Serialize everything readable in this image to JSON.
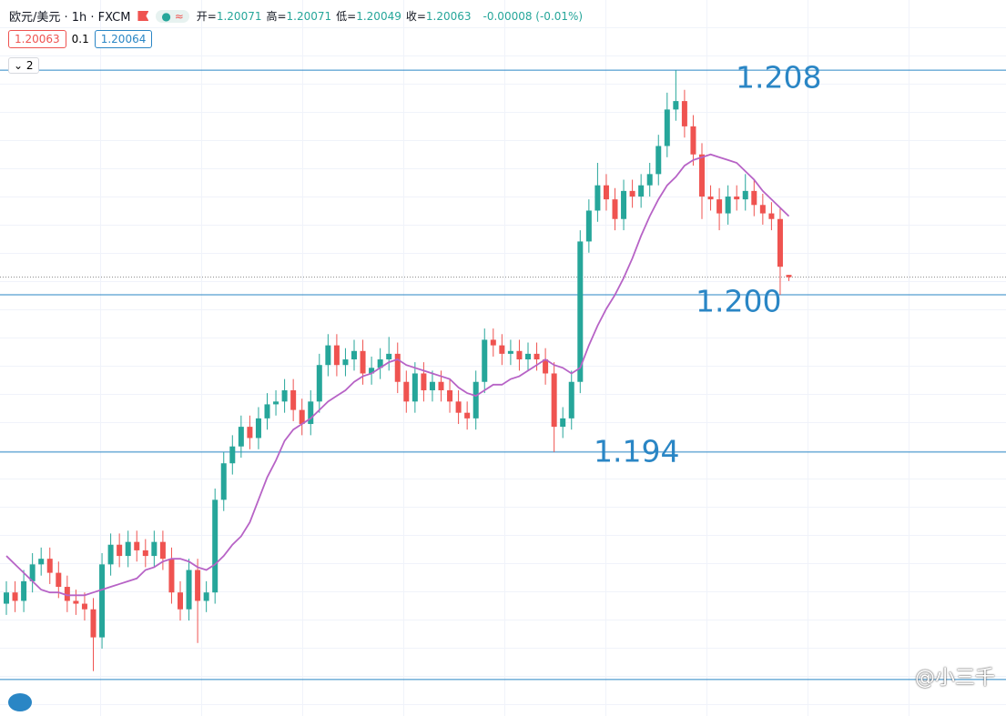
{
  "header": {
    "symbol": "欧元/美元 · 1h · FXCM",
    "ohlc": [
      {
        "label": "开=",
        "value": "1.20071"
      },
      {
        "label": "高=",
        "value": "1.20071"
      },
      {
        "label": "低=",
        "value": "1.20049"
      },
      {
        "label": "收=",
        "value": "1.20063"
      }
    ],
    "change": "-0.00008 (-0.01%)",
    "badges": [
      "1.20063",
      "0.1",
      "1.20064"
    ],
    "collapse": "2"
  },
  "watermark": "@小三千",
  "chart_data": {
    "type": "candlestick",
    "open": [
      1.189,
      1.1894,
      1.1891,
      1.1898,
      1.1904,
      1.1906,
      1.1901,
      1.1896,
      1.1891,
      1.189,
      1.1888,
      1.1878,
      1.1904,
      1.1911,
      1.1907,
      1.1912,
      1.1909,
      1.1907,
      1.1912,
      1.1906,
      1.1894,
      1.1888,
      1.1902,
      1.1891,
      1.1894,
      1.1927,
      1.194,
      1.1946,
      1.1953,
      1.1949,
      1.1956,
      1.1961,
      1.1962,
      1.1966,
      1.1959,
      1.1954,
      1.1962,
      1.1975,
      1.1982,
      1.1975,
      1.1977,
      1.198,
      1.1972,
      1.1974,
      1.1977,
      1.1979,
      1.1969,
      1.1962,
      1.1972,
      1.1966,
      1.1969,
      1.1966,
      1.1962,
      1.1958,
      1.1956,
      1.1969,
      1.1984,
      1.1982,
      1.1979,
      1.198,
      1.1977,
      1.1979,
      1.1977,
      1.1972,
      1.1953,
      1.1956,
      1.1969,
      1.2019,
      1.203,
      1.2039,
      1.2034,
      1.2027,
      1.2037,
      1.2035,
      1.2039,
      1.2043,
      1.2053,
      1.2066,
      1.2069,
      1.206,
      1.205,
      1.2035,
      1.2034,
      1.2029,
      1.2035,
      1.2034,
      1.2037,
      1.2032,
      1.2029,
      1.2027,
      1.20071
    ],
    "high": [
      1.1898,
      1.1898,
      1.1902,
      1.1908,
      1.191,
      1.191,
      1.1905,
      1.19,
      1.1895,
      1.1894,
      1.1892,
      1.1908,
      1.1915,
      1.1915,
      1.1916,
      1.1916,
      1.1913,
      1.1916,
      1.1916,
      1.191,
      1.1898,
      1.1906,
      1.1906,
      1.1898,
      1.1931,
      1.1944,
      1.195,
      1.1957,
      1.1957,
      1.196,
      1.1965,
      1.1966,
      1.197,
      1.197,
      1.1963,
      1.1966,
      1.1979,
      1.1986,
      1.1986,
      1.1981,
      1.1984,
      1.1984,
      1.1978,
      1.1981,
      1.1985,
      1.1983,
      1.1973,
      1.1976,
      1.1976,
      1.1973,
      1.1973,
      1.197,
      1.1966,
      1.1962,
      1.1973,
      1.1988,
      1.1988,
      1.1986,
      1.1984,
      1.1984,
      1.1983,
      1.1983,
      1.1981,
      1.1976,
      1.196,
      1.1973,
      1.2023,
      1.2034,
      1.2047,
      1.2043,
      1.2038,
      1.2041,
      1.2041,
      1.2043,
      1.2047,
      1.2057,
      1.2072,
      1.208,
      1.2073,
      1.2064,
      1.2054,
      1.2039,
      1.2038,
      1.2039,
      1.2039,
      1.2043,
      1.2041,
      1.2036,
      1.2033,
      1.2031,
      1.20071
    ],
    "low": [
      1.1886,
      1.1887,
      1.1887,
      1.1894,
      1.19,
      1.1897,
      1.1892,
      1.1887,
      1.1886,
      1.1884,
      1.1866,
      1.1874,
      1.19,
      1.1903,
      1.1903,
      1.1905,
      1.1903,
      1.1903,
      1.1902,
      1.189,
      1.1884,
      1.1884,
      1.1876,
      1.1887,
      1.189,
      1.1923,
      1.1936,
      1.1942,
      1.1945,
      1.1945,
      1.1952,
      1.1957,
      1.1958,
      1.1955,
      1.195,
      1.195,
      1.1958,
      1.1971,
      1.1971,
      1.1971,
      1.1973,
      1.1968,
      1.1968,
      1.197,
      1.1973,
      1.1965,
      1.1958,
      1.1958,
      1.1962,
      1.1962,
      1.1962,
      1.1958,
      1.1954,
      1.1952,
      1.1952,
      1.1965,
      1.1978,
      1.1975,
      1.1975,
      1.1973,
      1.1973,
      1.1973,
      1.1968,
      1.1944,
      1.1949,
      1.1952,
      1.1965,
      1.2015,
      1.2026,
      1.203,
      1.2023,
      1.2023,
      1.2031,
      1.2031,
      1.2035,
      1.2039,
      1.2049,
      1.2062,
      1.2056,
      1.2046,
      1.2027,
      1.203,
      1.2023,
      1.2025,
      1.203,
      1.203,
      1.2028,
      1.2025,
      1.2023,
      1.2,
      1.20049
    ],
    "close": [
      1.1894,
      1.1891,
      1.1898,
      1.1904,
      1.1906,
      1.1901,
      1.1896,
      1.1891,
      1.189,
      1.1888,
      1.1878,
      1.1904,
      1.1911,
      1.1907,
      1.1912,
      1.1909,
      1.1907,
      1.1912,
      1.1906,
      1.1894,
      1.1888,
      1.1902,
      1.1891,
      1.1894,
      1.1927,
      1.194,
      1.1946,
      1.1953,
      1.1949,
      1.1956,
      1.1961,
      1.1962,
      1.1966,
      1.1959,
      1.1954,
      1.1962,
      1.1975,
      1.1982,
      1.1975,
      1.1977,
      1.198,
      1.1972,
      1.1974,
      1.1977,
      1.1979,
      1.1969,
      1.1962,
      1.1972,
      1.1966,
      1.1969,
      1.1966,
      1.1962,
      1.1958,
      1.1956,
      1.1969,
      1.1984,
      1.1982,
      1.1979,
      1.198,
      1.1977,
      1.1979,
      1.1977,
      1.1972,
      1.1953,
      1.1956,
      1.1969,
      1.2019,
      1.203,
      1.2039,
      1.2034,
      1.2027,
      1.2037,
      1.2035,
      1.2039,
      1.2043,
      1.2053,
      1.2066,
      1.2069,
      1.206,
      1.205,
      1.2035,
      1.2034,
      1.2029,
      1.2035,
      1.2034,
      1.2037,
      1.2032,
      1.2029,
      1.2027,
      1.201,
      1.20063
    ],
    "up_color": "#26a69a",
    "down_color": "#ef5350",
    "ma": {
      "color": "#b763c6",
      "values": [
        1.1907,
        1.1904,
        1.1901,
        1.1898,
        1.1895,
        1.1894,
        1.1894,
        1.1893,
        1.1893,
        1.1893,
        1.1894,
        1.1895,
        1.1896,
        1.1897,
        1.1898,
        1.1899,
        1.1902,
        1.1903,
        1.1905,
        1.1906,
        1.1906,
        1.1905,
        1.1903,
        1.1902,
        1.1904,
        1.1907,
        1.1911,
        1.1914,
        1.1919,
        1.1927,
        1.1935,
        1.1941,
        1.1948,
        1.1952,
        1.1954,
        1.1956,
        1.1959,
        1.1962,
        1.1964,
        1.1966,
        1.1969,
        1.1971,
        1.1972,
        1.1974,
        1.1976,
        1.1977,
        1.1975,
        1.1974,
        1.1973,
        1.1972,
        1.1971,
        1.197,
        1.1967,
        1.1965,
        1.1964,
        1.1966,
        1.1968,
        1.1968,
        1.197,
        1.1971,
        1.1973,
        1.1975,
        1.1977,
        1.1975,
        1.1974,
        1.1972,
        1.1974,
        1.1982,
        1.1989,
        1.1995,
        1.2,
        1.2006,
        1.2013,
        1.2021,
        1.2028,
        1.2034,
        1.2039,
        1.2042,
        1.2046,
        1.2048,
        1.2049,
        1.205,
        1.2049,
        1.2048,
        1.2047,
        1.2044,
        1.2041,
        1.2037,
        1.2034,
        1.2031,
        1.2028
      ]
    },
    "ylim": [
      1.185,
      1.2105
    ],
    "levels": [
      1.208,
      1.2,
      1.1944,
      1.1863
    ],
    "level_labels": [
      "1.208",
      "1.200",
      "1.194",
      null
    ],
    "level_color": "#2a86c5"
  }
}
